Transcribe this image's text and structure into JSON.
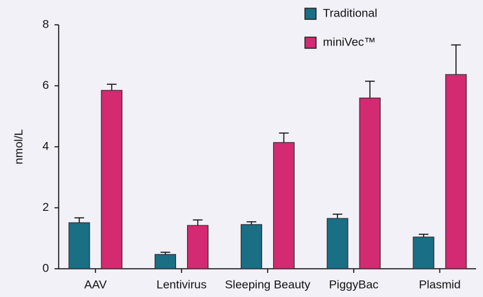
{
  "chart_data": {
    "type": "bar",
    "ylabel": "nmol/L",
    "categories": [
      "AAV",
      "Lentivirus",
      "Sleeping Beauty",
      "PiggyBac",
      "Plasmid"
    ],
    "series": [
      {
        "name": "Traditional",
        "color": "#1a6f85",
        "values": [
          1.51,
          0.47,
          1.45,
          1.65,
          1.04
        ],
        "errors": [
          0.16,
          0.07,
          0.09,
          0.14,
          0.09
        ]
      },
      {
        "name": "miniVec™",
        "color": "#d42a72",
        "values": [
          5.85,
          1.42,
          4.14,
          5.6,
          6.37
        ],
        "errors": [
          0.2,
          0.18,
          0.31,
          0.55,
          0.97
        ]
      }
    ],
    "ylim": [
      0,
      8
    ],
    "yticks": [
      0,
      2,
      4,
      6,
      8
    ],
    "grid": false,
    "legend": "top-right"
  }
}
